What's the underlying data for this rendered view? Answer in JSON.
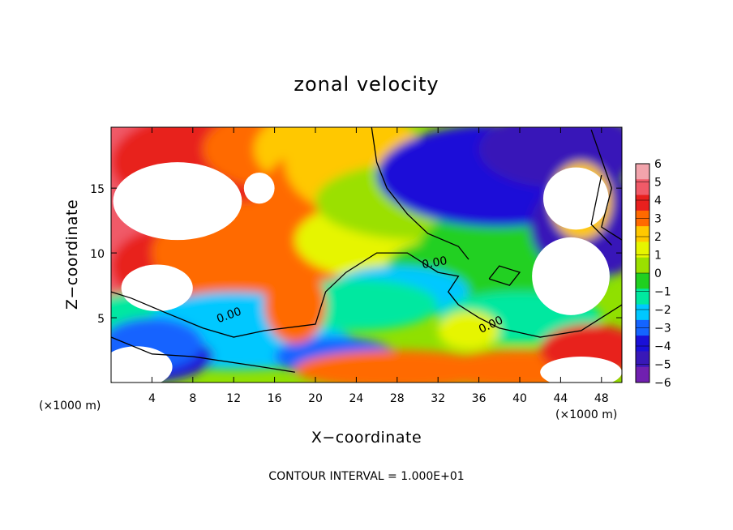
{
  "chart_data": {
    "type": "heatmap",
    "title": "zonal velocity",
    "xlabel": "X−coordinate",
    "ylabel": "Z−coordinate",
    "x_units_left": "(×1000 m)",
    "x_units_right": "(×1000 m)",
    "xlim": [
      0,
      50
    ],
    "ylim": [
      0,
      19.7
    ],
    "x_ticks": [
      4,
      8,
      12,
      16,
      20,
      24,
      28,
      32,
      36,
      40,
      44,
      48
    ],
    "y_ticks": [
      5,
      10,
      15
    ],
    "contour_note": "CONTOUR INTERVAL = 1.000E+01",
    "contour_label": "0.00",
    "colorbar": {
      "labels": [
        "6",
        "5",
        "4",
        "3",
        "2",
        "1",
        "0",
        "−1",
        "−2",
        "−3",
        "−4",
        "−5",
        "−6"
      ],
      "min": -6,
      "max": 6,
      "colors": [
        "#f2a4ac",
        "#f05a68",
        "#e8201e",
        "#ff6a00",
        "#ffc800",
        "#e6f500",
        "#9be000",
        "#20d020",
        "#00e8a0",
        "#00c8ff",
        "#1464ff",
        "#1a10d8",
        "#3818b8",
        "#7020b0"
      ]
    },
    "grid": "off",
    "legend_position": "right (colorbar)"
  }
}
